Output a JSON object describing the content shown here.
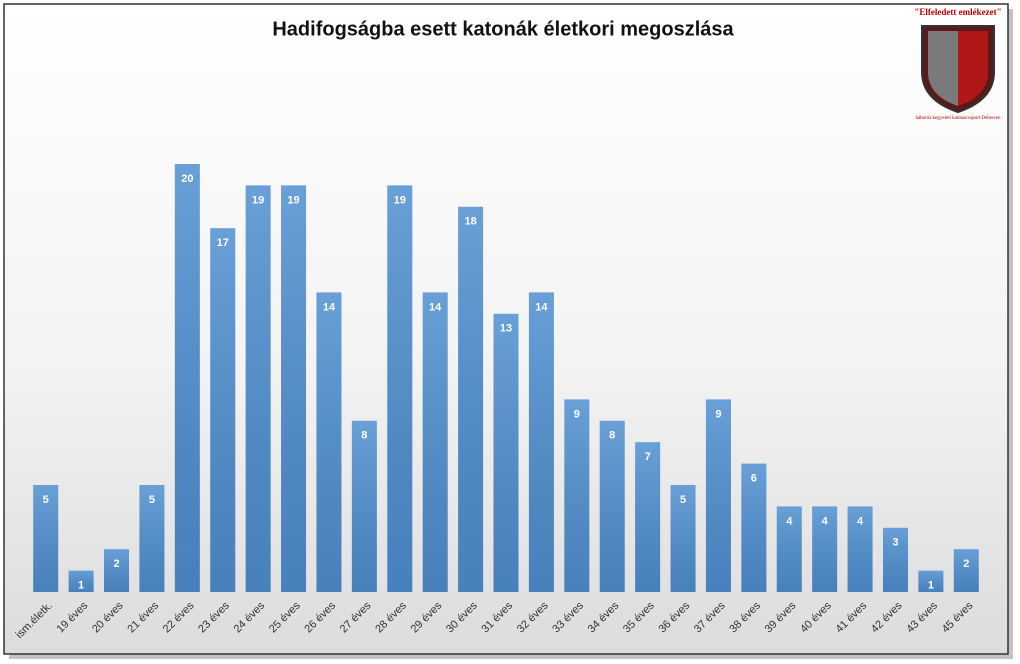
{
  "chart_data": {
    "type": "bar",
    "title": "Hadifogságba esett katonák életkori megoszlása",
    "categories": [
      "ism.életk.",
      "19 éves",
      "20 éves",
      "21 éves",
      "22 éves",
      "23 éves",
      "24 éves",
      "25 éves",
      "26 éves",
      "27 éves",
      "28 éves",
      "29 éves",
      "30 éves",
      "31 éves",
      "32 éves",
      "33 éves",
      "34 éves",
      "35 éves",
      "36 éves",
      "37 éves",
      "38 éves",
      "39 éves",
      "40 éves",
      "41 éves",
      "42 éves",
      "43 éves",
      "45 éves"
    ],
    "values": [
      5,
      1,
      2,
      5,
      20,
      17,
      19,
      19,
      14,
      8,
      19,
      14,
      18,
      13,
      14,
      9,
      8,
      7,
      5,
      9,
      6,
      4,
      4,
      4,
      3,
      1,
      2
    ],
    "color": "#4f8fd0"
  },
  "logo": {
    "motto": "\"Elfeledett emlékezet\"",
    "caption": "háborús kegyeleti katonacsoport Debrecen"
  }
}
